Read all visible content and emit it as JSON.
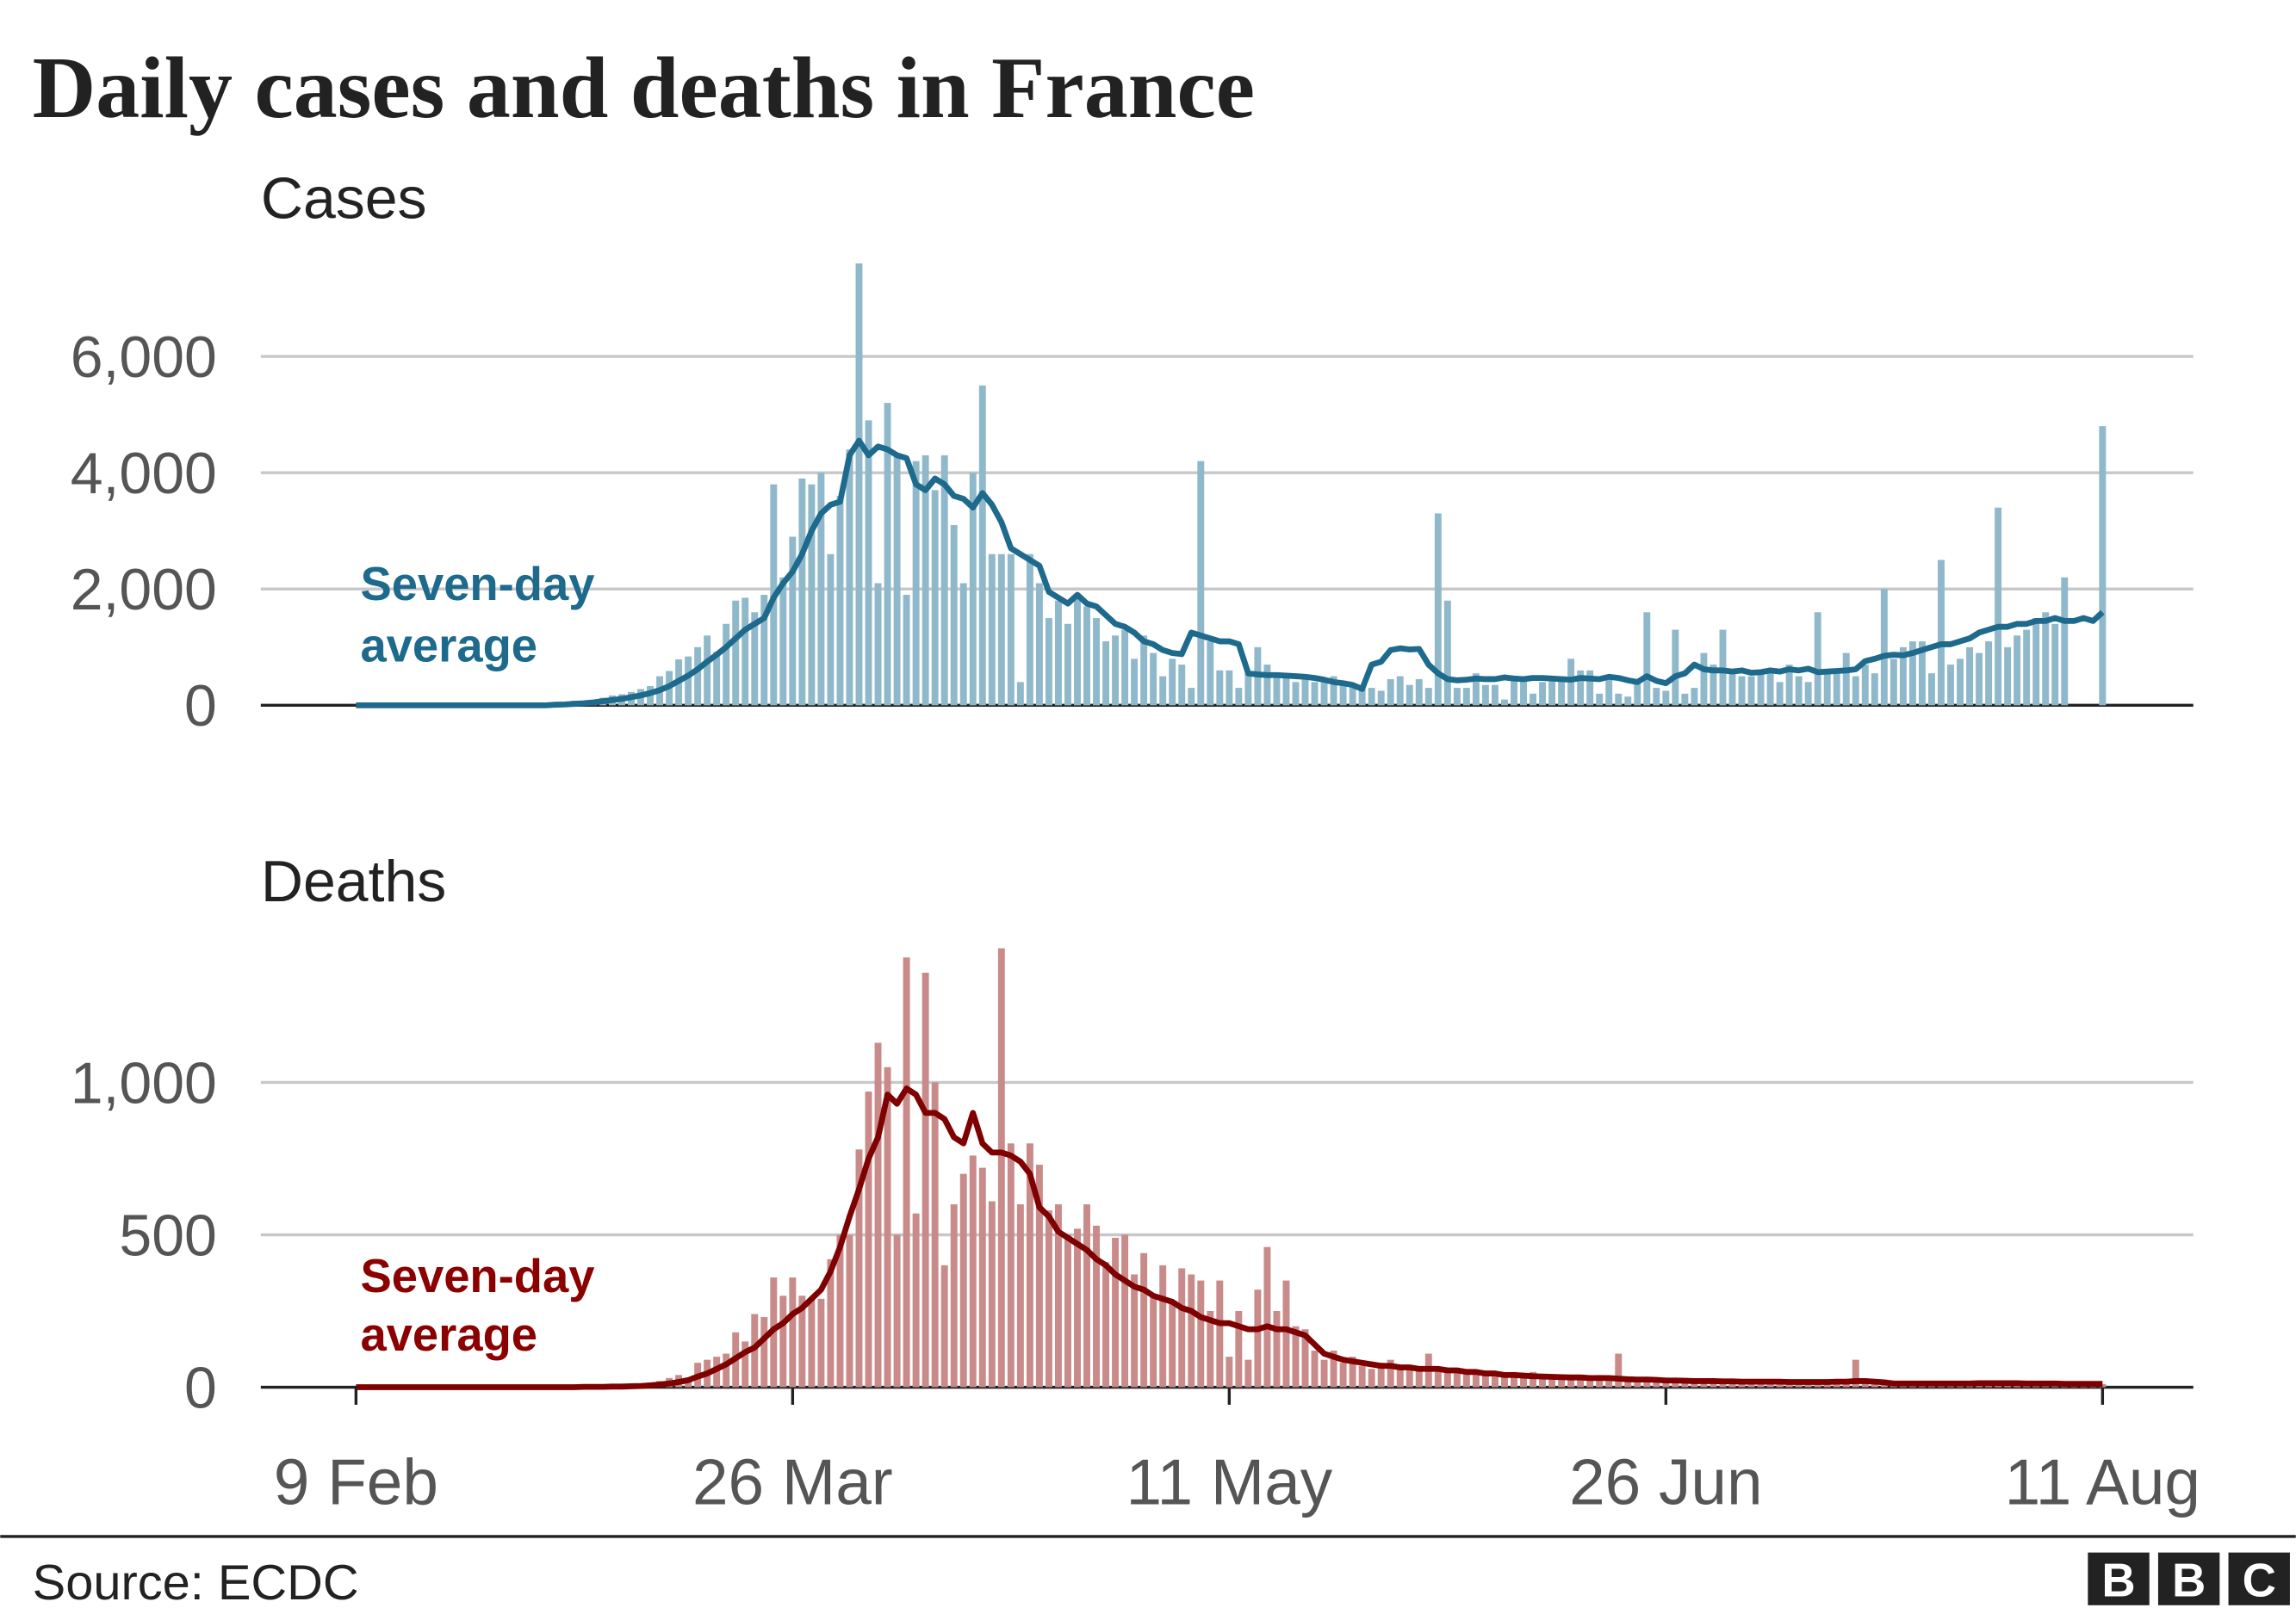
{
  "title": "Daily cases and deaths in France",
  "source": "Source: ECDC",
  "logo": [
    "B",
    "B",
    "C"
  ],
  "chart_data": [
    {
      "type": "bar",
      "subtitle": "Cases",
      "annotation": [
        "Seven-day",
        "average"
      ],
      "annotation_color": "#1d6a8c",
      "ylim": [
        0,
        7600
      ],
      "yticks": [
        0,
        {
          "value": 2000,
          "label": "2,000"
        },
        {
          "value": 4000,
          "label": "4,000"
        },
        {
          "value": 6000,
          "label": "6,000"
        }
      ],
      "grid": true,
      "series": [
        {
          "type": "bar",
          "color": "#8fb9ca",
          "values": [
            0,
            0,
            0,
            0,
            0,
            0,
            0,
            0,
            0,
            0,
            0,
            0,
            0,
            0,
            2,
            5,
            0,
            0,
            15,
            25,
            40,
            30,
            60,
            80,
            60,
            90,
            130,
            170,
            190,
            230,
            280,
            330,
            500,
            590,
            790,
            840,
            1000,
            1200,
            920,
            1400,
            1800,
            1850,
            1600,
            1900,
            3800,
            2200,
            2900,
            3900,
            3800,
            4000,
            2600,
            3600,
            4400,
            7600,
            4900,
            2100,
            5200,
            4300,
            1900,
            4200,
            4300,
            3700,
            4300,
            3100,
            2100,
            4000,
            5500,
            2600,
            2600,
            2600,
            400,
            2600,
            2100,
            1500,
            1800,
            1400,
            1900,
            1700,
            1500,
            1100,
            1200,
            1300,
            800,
            1200,
            900,
            500,
            800,
            700,
            300,
            4200,
            1100,
            600,
            600,
            300,
            550,
            1000,
            700,
            500,
            500,
            400,
            500,
            400,
            400,
            500,
            400,
            350,
            300,
            300,
            250,
            450,
            500,
            350,
            450,
            300,
            3300,
            1800,
            300,
            300,
            550,
            350,
            350,
            100,
            450,
            500,
            200,
            400,
            450,
            500,
            800,
            600,
            600,
            200,
            500,
            200,
            150,
            400,
            1600,
            300,
            250,
            1300,
            200,
            300,
            900,
            700,
            1300,
            600,
            500,
            500,
            600,
            600,
            400,
            700,
            500,
            400,
            1600,
            550,
            600,
            900,
            500,
            700,
            550,
            2000,
            800,
            1000,
            1100,
            1100,
            550,
            2500,
            700,
            800,
            1000,
            900,
            1100,
            3400,
            1000,
            1200,
            1300,
            1500,
            1600,
            1400,
            2200,
            0,
            0,
            0,
            4800
          ]
        },
        {
          "type": "line",
          "color": "#1d6a8c",
          "values": [
            0,
            0,
            0,
            0,
            0,
            0,
            0,
            0,
            0,
            0,
            0,
            0,
            0,
            0,
            0,
            0,
            0,
            0,
            0,
            0,
            0,
            10,
            15,
            25,
            35,
            50,
            70,
            90,
            110,
            140,
            170,
            210,
            260,
            330,
            420,
            510,
            620,
            750,
            870,
            1000,
            1150,
            1300,
            1400,
            1500,
            1850,
            2100,
            2300,
            2600,
            3000,
            3300,
            3450,
            3500,
            4300,
            4550,
            4300,
            4450,
            4400,
            4300,
            4250,
            3800,
            3700,
            3900,
            3800,
            3600,
            3550,
            3400,
            3650,
            3450,
            3150,
            2700,
            2600,
            2500,
            2400,
            1950,
            1850,
            1750,
            1900,
            1750,
            1700,
            1550,
            1400,
            1350,
            1250,
            1100,
            1050,
            950,
            900,
            880,
            1250,
            1200,
            1150,
            1100,
            1100,
            1050,
            550,
            530,
            520,
            520,
            510,
            500,
            490,
            470,
            440,
            400,
            380,
            350,
            280,
            700,
            750,
            950,
            980,
            960,
            970,
            700,
            550,
            450,
            430,
            440,
            460,
            450,
            450,
            480,
            460,
            450,
            470,
            470,
            460,
            450,
            440,
            470,
            460,
            450,
            490,
            470,
            430,
            400,
            500,
            420,
            380,
            500,
            550,
            700,
            620,
            600,
            600,
            580,
            600,
            560,
            570,
            600,
            580,
            620,
            600,
            630,
            570,
            580,
            590,
            600,
            620,
            760,
            800,
            850,
            870,
            860,
            900,
            950,
            1000,
            1050,
            1050,
            1100,
            1150,
            1250,
            1300,
            1350,
            1350,
            1400,
            1400,
            1450,
            1450,
            1500,
            1450,
            1450,
            1500,
            1450,
            1600
          ]
        }
      ]
    },
    {
      "type": "bar",
      "subtitle": "Deaths",
      "annotation": [
        "Seven-day",
        "average"
      ],
      "annotation_color": "#8b0000",
      "ylim": [
        0,
        1450
      ],
      "yticks": [
        0,
        500,
        {
          "value": 1000,
          "label": "1,000"
        }
      ],
      "grid": true,
      "categories": [
        "9 Feb",
        null,
        null,
        null,
        null,
        null,
        null,
        null,
        null,
        null,
        null,
        null,
        null,
        null,
        null,
        null,
        null,
        null,
        null,
        null,
        null,
        null,
        null,
        null,
        null,
        null,
        null,
        null,
        null,
        null,
        null,
        null,
        null,
        null,
        null,
        null,
        null,
        null,
        null,
        null,
        null,
        null,
        null,
        null,
        null,
        null,
        "26 Mar",
        null,
        null,
        null,
        null,
        null,
        null,
        null,
        null,
        null,
        null,
        null,
        null,
        null,
        null,
        null,
        null,
        null,
        null,
        null,
        null,
        null,
        null,
        null,
        null,
        null,
        null,
        null,
        null,
        null,
        null,
        null,
        null,
        null,
        null,
        null,
        null,
        null,
        null,
        null,
        null,
        null,
        null,
        null,
        null,
        null,
        "11 May",
        null,
        null,
        null,
        null,
        null,
        null,
        null,
        null,
        null,
        null,
        null,
        null,
        null,
        null,
        null,
        null,
        null,
        null,
        null,
        null,
        null,
        null,
        null,
        null,
        null,
        null,
        null,
        null,
        null,
        null,
        null,
        null,
        null,
        null,
        null,
        null,
        null,
        null,
        null,
        null,
        null,
        null,
        null,
        null,
        null,
        "26 Jun",
        null,
        null,
        null,
        null,
        null,
        null,
        null,
        null,
        null,
        null,
        null,
        null,
        null,
        null,
        null,
        null,
        null,
        null,
        null,
        null,
        null,
        null,
        null,
        null,
        null,
        null,
        null,
        null,
        null,
        null,
        null,
        null,
        null,
        null,
        null,
        null,
        null,
        null,
        null,
        null,
        null,
        null,
        null,
        null,
        null,
        "11 Aug"
      ],
      "series": [
        {
          "type": "bar",
          "color": "#c98a8a",
          "values": [
            0,
            0,
            0,
            0,
            0,
            0,
            0,
            0,
            0,
            0,
            0,
            0,
            0,
            0,
            0,
            0,
            0,
            0,
            0,
            0,
            0,
            0,
            1,
            0,
            2,
            2,
            3,
            2,
            5,
            3,
            10,
            15,
            20,
            30,
            40,
            20,
            80,
            90,
            100,
            110,
            180,
            150,
            240,
            230,
            360,
            300,
            360,
            300,
            290,
            290,
            420,
            500,
            500,
            780,
            970,
            1130,
            1050,
            500,
            1410,
            570,
            1360,
            1000,
            400,
            600,
            700,
            760,
            720,
            610,
            1440,
            800,
            600,
            800,
            730,
            580,
            600,
            500,
            520,
            600,
            530,
            410,
            490,
            500,
            370,
            440,
            300,
            400,
            280,
            390,
            370,
            350,
            250,
            350,
            100,
            250,
            90,
            320,
            460,
            250,
            350,
            200,
            190,
            120,
            90,
            120,
            80,
            100,
            70,
            60,
            80,
            90,
            70,
            70,
            60,
            110,
            60,
            50,
            60,
            50,
            50,
            40,
            50,
            40,
            50,
            30,
            50,
            40,
            30,
            40,
            30,
            30,
            30,
            40,
            30,
            110,
            30,
            20,
            30,
            20,
            20,
            30,
            30,
            20,
            20,
            20,
            20,
            20,
            20,
            20,
            20,
            20,
            20,
            20,
            20,
            20,
            20,
            20,
            20,
            20,
            90,
            20,
            20,
            20,
            20,
            20,
            20,
            10,
            10,
            10,
            10,
            10,
            10,
            10,
            10,
            15,
            10,
            15,
            10,
            10,
            10,
            15,
            10,
            10,
            10,
            10,
            10
          ]
        },
        {
          "type": "line",
          "color": "#7f0000",
          "values": [
            0,
            0,
            0,
            0,
            0,
            0,
            0,
            0,
            0,
            0,
            0,
            0,
            0,
            0,
            0,
            0,
            0,
            0,
            0,
            0,
            0,
            0,
            0,
            0,
            1,
            1,
            1,
            2,
            2,
            3,
            4,
            6,
            9,
            12,
            17,
            23,
            35,
            45,
            60,
            75,
            95,
            115,
            130,
            160,
            190,
            210,
            240,
            260,
            290,
            320,
            380,
            460,
            560,
            650,
            750,
            820,
            960,
            930,
            980,
            960,
            900,
            900,
            880,
            820,
            800,
            900,
            800,
            770,
            770,
            760,
            740,
            700,
            590,
            560,
            510,
            490,
            470,
            450,
            420,
            400,
            370,
            350,
            330,
            320,
            300,
            290,
            280,
            260,
            250,
            230,
            220,
            210,
            210,
            200,
            190,
            190,
            200,
            190,
            190,
            180,
            170,
            140,
            110,
            100,
            90,
            85,
            80,
            75,
            70,
            70,
            65,
            65,
            60,
            60,
            60,
            55,
            55,
            50,
            50,
            45,
            45,
            40,
            40,
            38,
            36,
            35,
            34,
            33,
            32,
            32,
            30,
            30,
            30,
            28,
            26,
            25,
            25,
            24,
            22,
            22,
            21,
            20,
            20,
            20,
            19,
            19,
            18,
            18,
            18,
            18,
            18,
            17,
            17,
            17,
            17,
            17,
            18,
            18,
            20,
            20,
            18,
            16,
            12,
            12,
            12,
            12,
            12,
            12,
            12,
            12,
            12,
            13,
            13,
            13,
            13,
            13,
            12,
            12,
            12,
            12,
            11,
            11,
            11,
            11,
            11
          ]
        }
      ]
    }
  ]
}
